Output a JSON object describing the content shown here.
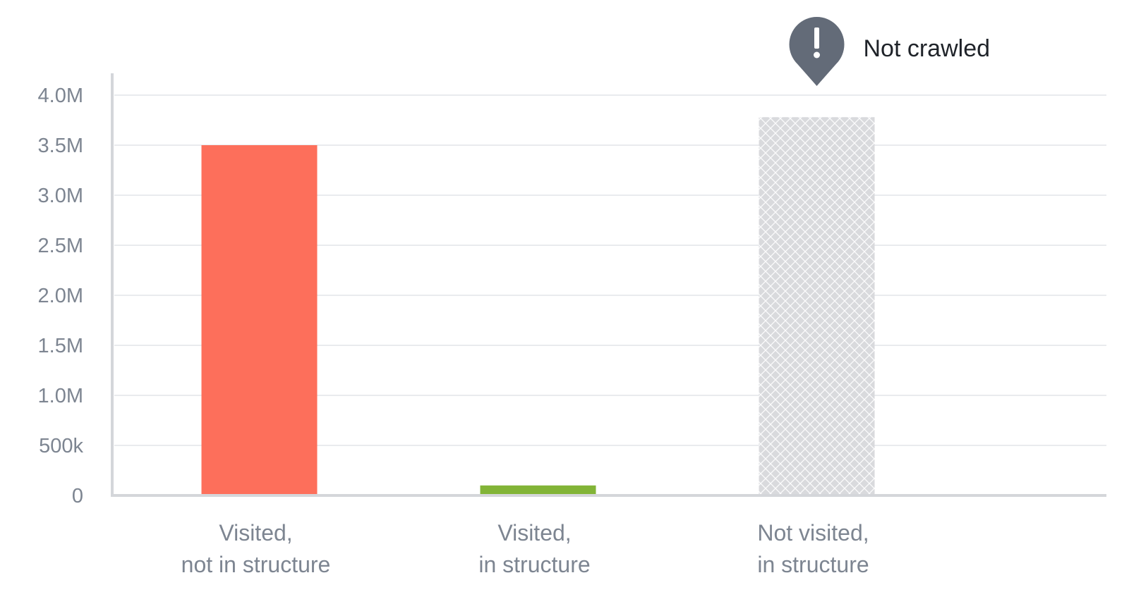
{
  "chart_data": {
    "type": "bar",
    "title": "",
    "xlabel": "",
    "ylabel": "",
    "ylim": [
      0,
      4000000
    ],
    "yticks": [
      {
        "value": 0,
        "label": "0"
      },
      {
        "value": 500000,
        "label": "500k"
      },
      {
        "value": 1000000,
        "label": "1.0M"
      },
      {
        "value": 1500000,
        "label": "1.5M"
      },
      {
        "value": 2000000,
        "label": "2.0M"
      },
      {
        "value": 2500000,
        "label": "2.5M"
      },
      {
        "value": 3000000,
        "label": "3.0M"
      },
      {
        "value": 3500000,
        "label": "3.5M"
      },
      {
        "value": 4000000,
        "label": "4.0M"
      }
    ],
    "grid": true,
    "categories": [
      {
        "lines": [
          "Visited,",
          "not in structure"
        ]
      },
      {
        "lines": [
          "Visited,",
          "in structure"
        ]
      },
      {
        "lines": [
          "Not visited,",
          "in structure"
        ]
      }
    ],
    "values": [
      3500000,
      100000,
      3780000
    ],
    "bar_colors": [
      "#fd6f5b",
      "#82b437",
      "#d9dadd"
    ],
    "bar_styles": [
      "solid",
      "solid",
      "crosshatch"
    ],
    "annotation": {
      "text": "Not crawled",
      "icon": "exclamation-marker-icon",
      "icon_color": "#636b78",
      "category_index": 2
    }
  }
}
